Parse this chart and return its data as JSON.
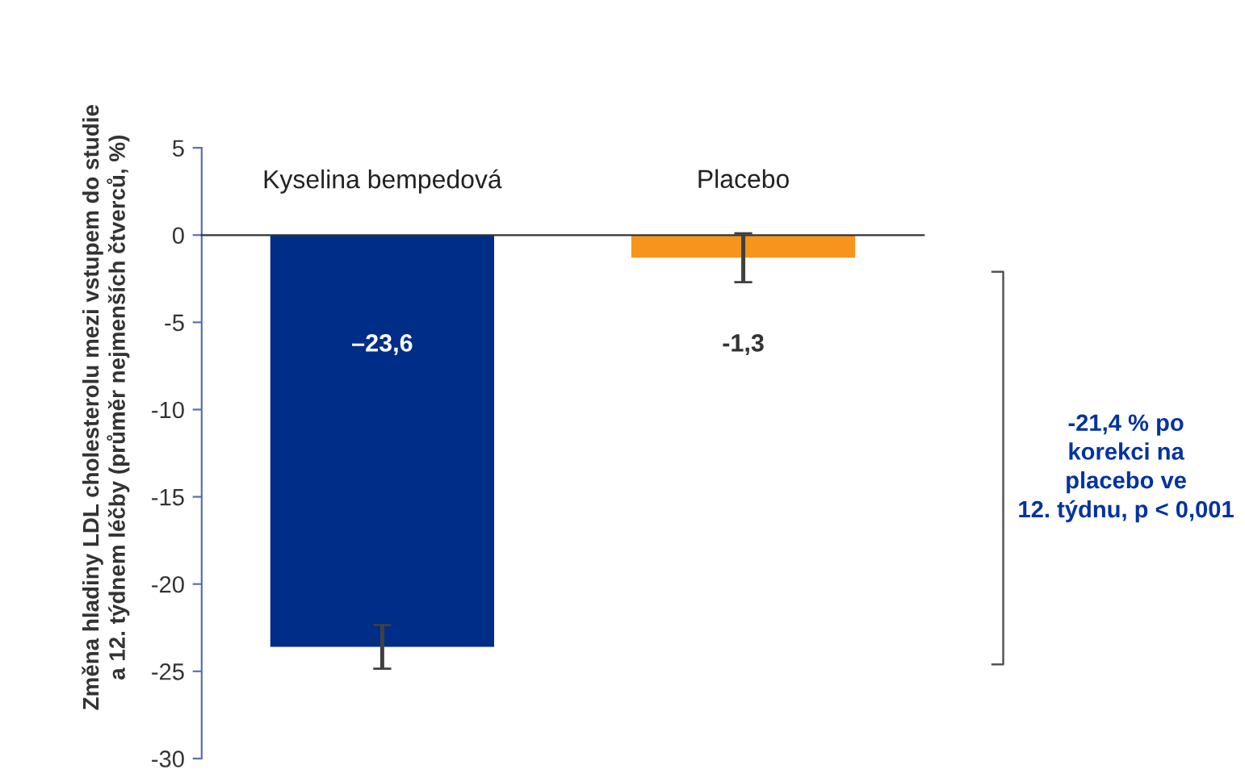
{
  "chart_data": {
    "type": "bar",
    "ylabel": "Změna hladiny LDL cholesterolu mezi vstupem do studie\na 12. týdnem léčby (průměr nejmenších čtverců, %)",
    "categories": [
      "Kyselina bempedová",
      "Placebo"
    ],
    "values": [
      -23.6,
      -1.3
    ],
    "colors": [
      "#002d87",
      "#f7941d"
    ],
    "errors": [
      1.25,
      1.4
    ],
    "value_labels": [
      "–23,6",
      "-1,3"
    ],
    "ylim": [
      -30,
      5
    ],
    "yticks": [
      -30,
      -25,
      -20,
      -15,
      -10,
      -5,
      0,
      5
    ],
    "grid": false,
    "legend": false,
    "annotations": [
      "-21,4 % po\nkorekci na\nplacebo ve\n12. týdnu, p < 0,001"
    ]
  }
}
